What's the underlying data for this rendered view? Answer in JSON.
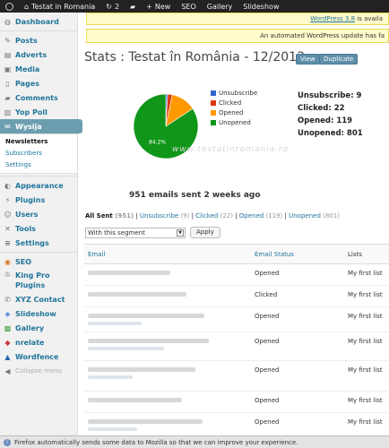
{
  "adminbar": {
    "site_name": "Testat in Romania",
    "updates_count": "2",
    "new_label": "New",
    "seo_label": "SEO",
    "gallery_label": "Gallery",
    "slideshow_label": "Slideshow"
  },
  "sidebar": {
    "items": [
      {
        "label": "Dashboard",
        "icon": "dashboard-icon"
      },
      {
        "label": "Posts",
        "icon": "pin-icon"
      },
      {
        "label": "Adverts",
        "icon": "adverts-icon"
      },
      {
        "label": "Media",
        "icon": "media-icon"
      },
      {
        "label": "Pages",
        "icon": "pages-icon"
      },
      {
        "label": "Comments",
        "icon": "comments-icon"
      },
      {
        "label": "Yop Poll",
        "icon": "poll-icon"
      },
      {
        "label": "Wysija",
        "icon": "wysija-icon"
      },
      {
        "label": "Appearance",
        "icon": "appearance-icon"
      },
      {
        "label": "Plugins",
        "icon": "plugins-icon"
      },
      {
        "label": "Users",
        "icon": "users-icon"
      },
      {
        "label": "Tools",
        "icon": "tools-icon"
      },
      {
        "label": "Settings",
        "icon": "settings-icon"
      },
      {
        "label": "SEO",
        "icon": "seo-icon"
      },
      {
        "label": "King Pro Plugins",
        "icon": "king-icon"
      },
      {
        "label": "XYZ Contact",
        "icon": "contact-icon"
      },
      {
        "label": "Slideshow",
        "icon": "slideshow-icon"
      },
      {
        "label": "Gallery",
        "icon": "gallery-icon"
      },
      {
        "label": "nrelate",
        "icon": "nrelate-icon"
      },
      {
        "label": "Wordfence",
        "icon": "wordfence-icon"
      }
    ],
    "submenu": [
      "Newsletters",
      "Subscribers",
      "Settings"
    ],
    "collapse_label": "Collapse menu"
  },
  "notices": {
    "update_link": "WordPress 3.8",
    "update_suffix": " is availa",
    "auto_update": "An automated WordPress update has fa"
  },
  "page": {
    "title": "Stats : Testat în România - 12/2013",
    "view_button": "View",
    "duplicate_button": "Duplicate",
    "watermark": "www.testatinromania.ro",
    "sent_summary": "951 emails sent 2 weeks ago"
  },
  "chart_data": {
    "type": "pie",
    "categories": [
      "Unsubscribe",
      "Clicked",
      "Opened",
      "Unopened"
    ],
    "values": [
      9,
      22,
      119,
      801
    ],
    "colors": [
      "#3366cc",
      "#dc3912",
      "#ff9900",
      "#109618"
    ],
    "slice_label": "84.2%",
    "legend_position": "right"
  },
  "counts": {
    "unsubscribe": "Unsubscribe: 9",
    "clicked": "Clicked: 22",
    "opened": "Opened: 119",
    "unopened": "Unopened: 801"
  },
  "filters": [
    {
      "label": "All Sent",
      "count": "(951)"
    },
    {
      "label": "Unsubscribe",
      "count": "(9)"
    },
    {
      "label": "Clicked",
      "count": "(22)"
    },
    {
      "label": "Opened",
      "count": "(119)"
    },
    {
      "label": "Unopened",
      "count": "(801)"
    }
  ],
  "segment": {
    "selected": "With this segment",
    "apply": "Apply"
  },
  "table": {
    "headers": [
      "Email",
      "Email Status",
      "Lists"
    ],
    "rows": [
      {
        "status": "Opened",
        "list": "My first list"
      },
      {
        "status": "Clicked",
        "list": "My first list"
      },
      {
        "status": "Opened",
        "list": "My first list"
      },
      {
        "status": "Opened",
        "list": "My first list"
      },
      {
        "status": "Opened",
        "list": "My first list"
      },
      {
        "status": "Opened",
        "list": "My first list"
      },
      {
        "status": "Opened",
        "list": "My first list"
      }
    ]
  },
  "firefox_bar": "Firefox automatically sends some data to Mozilla so that we can improve your experience."
}
